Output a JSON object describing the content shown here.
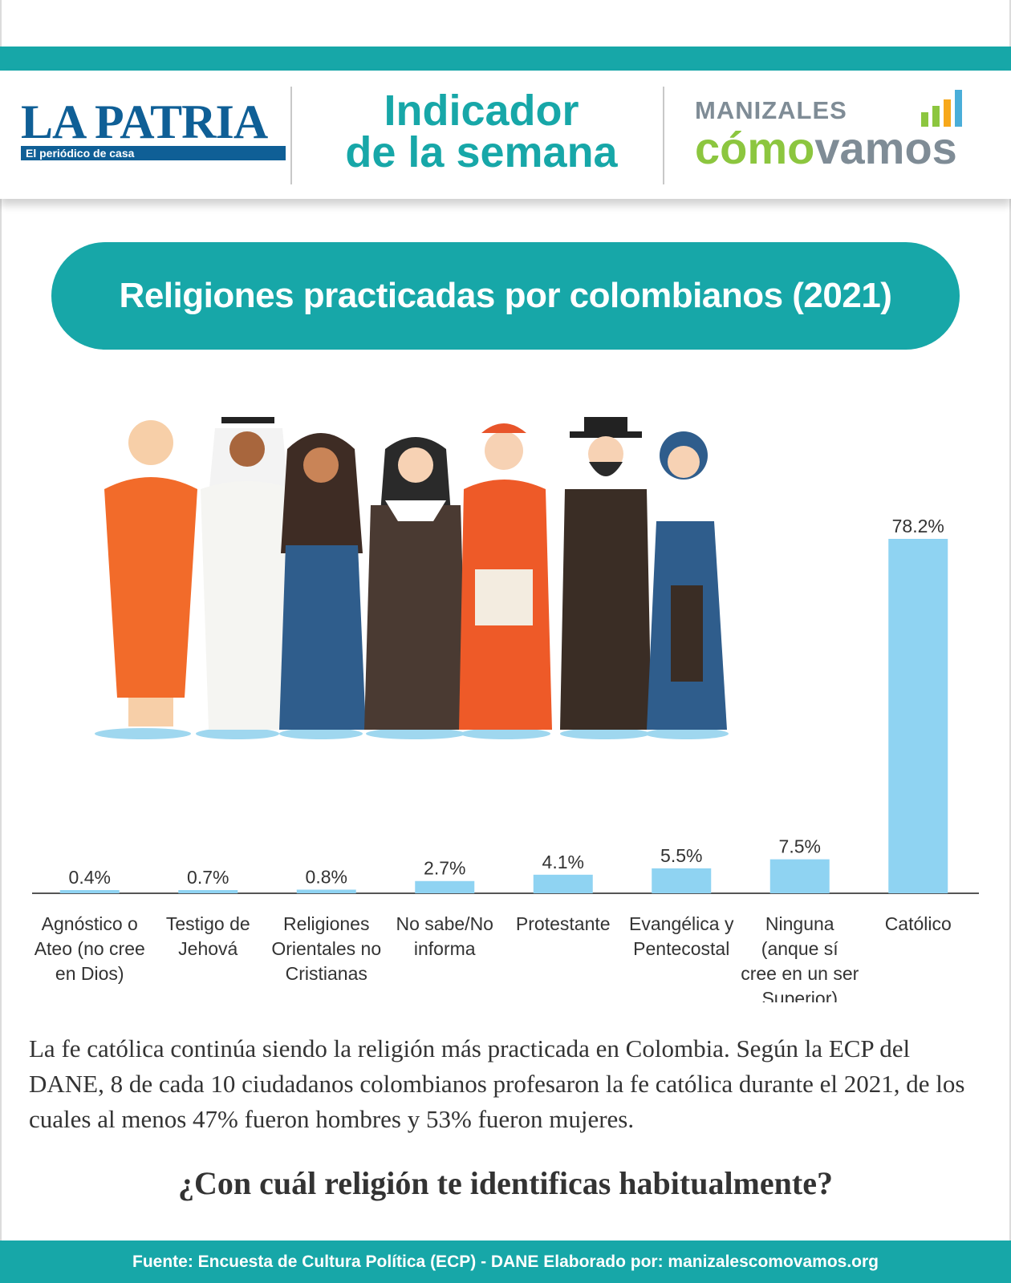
{
  "header": {
    "lapatria_name": "LA PATRIA",
    "lapatria_tagline": "El periódico de casa",
    "indicador_line1": "Indicador",
    "indicador_line2": "de la semana",
    "mcv_top": "MANIZALES",
    "mcv_bottom_green": "cómo",
    "mcv_bottom_grey": "vamos"
  },
  "colors": {
    "teal": "#17a7a8",
    "bar": "#8fd3f2",
    "brand_blue": "#0f5f96",
    "brand_green": "#8cc63f",
    "brand_grey": "#7f8c96"
  },
  "chart_data": {
    "type": "bar",
    "title": "Religiones practicadas por colombianos (2021)",
    "categories": [
      [
        "Agnóstico o",
        "Ateo (no cree",
        "en Dios)"
      ],
      [
        "Testigo de",
        "Jehová"
      ],
      [
        "Religiones",
        "Orientales no",
        "Cristianas"
      ],
      [
        "No sabe/No",
        "informa"
      ],
      [
        "Protestante"
      ],
      [
        "Evangélica y",
        "Pentecostal"
      ],
      [
        "Ninguna",
        "(anque sí",
        "cree en un ser",
        "Superior)"
      ],
      [
        "Católico"
      ]
    ],
    "values": [
      0.4,
      0.7,
      0.8,
      2.7,
      4.1,
      5.5,
      7.5,
      78.2
    ],
    "value_labels": [
      "0.4%",
      "0.7%",
      "0.8%",
      "2.7%",
      "4.1%",
      "5.5%",
      "7.5%",
      "78.2%"
    ],
    "unit": "%",
    "ylim": [
      0,
      78.2
    ],
    "grid": false,
    "legend": "none"
  },
  "description": "La fe católica continúa siendo la religión más practicada en Colombia. Según la ECP del DANE, 8 de cada 10 ciudadanos colombianos profesaron la fe católica durante el 2021, de los cuales al menos 47% fueron hombres y 53% fueron mujeres.",
  "question": "¿Con cuál religión te identificas habitualmente?",
  "footer": "Fuente: Encuesta de Cultura Política (ECP) - DANE Elaborado por: manizalescomovamos.org"
}
